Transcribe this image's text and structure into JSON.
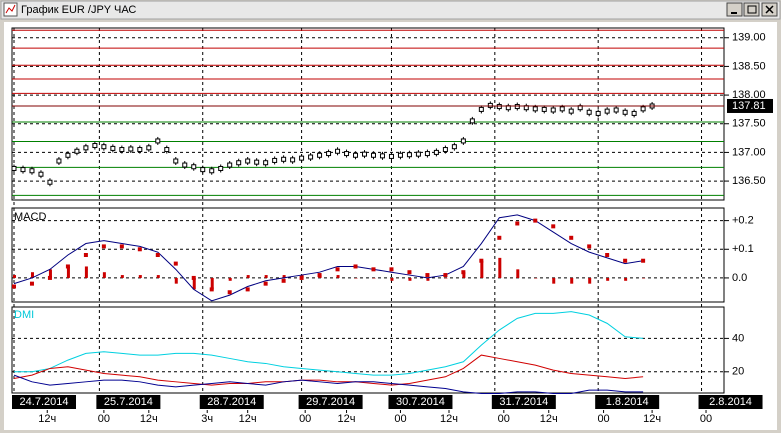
{
  "window": {
    "title": "График EUR /JPY ЧАС"
  },
  "chart_data": [
    {
      "type": "stock",
      "color": "#000000",
      "xlim": [
        0,
        79
      ],
      "ylim": [
        136.17,
        139.17
      ],
      "yticks": [
        {
          "value": 139,
          "label": "139.00"
        },
        {
          "value": 138.5,
          "label": "138.50"
        },
        {
          "value": 138,
          "label": "138.00"
        },
        {
          "value": 137.5,
          "label": "137.50"
        },
        {
          "value": 137,
          "label": "137.00"
        },
        {
          "value": 136.5,
          "label": "136.50"
        }
      ],
      "grid": true,
      "xticks": [
        {
          "value": 0,
          "label": "24.7.2014"
        },
        {
          "value": 9.5,
          "label": "25.7.2014"
        },
        {
          "value": 21,
          "label": "28.7.2014"
        },
        {
          "value": 32,
          "label": "29.7.2014"
        },
        {
          "value": 42,
          "label": "30.7.2014"
        },
        {
          "value": 53.5,
          "label": "31.7.2014"
        },
        {
          "value": 65,
          "label": "1.8.2014"
        },
        {
          "value": 76.5,
          "label": "2.8.2014"
        }
      ],
      "hour_ticks": [
        {
          "value": 3.7,
          "label": "12ч"
        },
        {
          "value": 10,
          "label": "00"
        },
        {
          "value": 15,
          "label": "12ч"
        },
        {
          "value": 21.5,
          "label": "3ч"
        },
        {
          "value": 26,
          "label": "12ч"
        },
        {
          "value": 32.4,
          "label": "00"
        },
        {
          "value": 37,
          "label": "12ч"
        },
        {
          "value": 43,
          "label": "00"
        },
        {
          "value": 48.4,
          "label": "12ч"
        },
        {
          "value": 54.5,
          "label": "00"
        },
        {
          "value": 59.5,
          "label": "12ч"
        },
        {
          "value": 65.6,
          "label": "00"
        },
        {
          "value": 71,
          "label": "12ч"
        },
        {
          "value": 77,
          "label": "00"
        }
      ],
      "values": [
        136.72,
        136.7,
        136.68,
        136.62,
        136.48,
        136.85,
        136.95,
        137.02,
        137.08,
        137.12,
        137.1,
        137.07,
        137.05,
        137.06,
        137.05,
        137.08,
        137.2,
        137.05,
        136.85,
        136.78,
        136.75,
        136.7,
        136.68,
        136.72,
        136.78,
        136.82,
        136.85,
        136.83,
        136.82,
        136.86,
        136.88,
        136.87,
        136.9,
        136.92,
        136.95,
        136.98,
        137.02,
        136.98,
        136.95,
        136.97,
        136.95,
        136.94,
        136.93,
        136.95,
        136.96,
        136.97,
        136.98,
        137.0,
        137.05,
        137.1,
        137.2,
        137.55,
        137.75,
        137.82,
        137.8,
        137.78,
        137.8,
        137.78,
        137.76,
        137.75,
        137.74,
        137.76,
        137.72,
        137.78,
        137.7,
        137.68,
        137.72,
        137.74,
        137.7,
        137.68,
        137.76,
        137.81
      ],
      "last_price": 137.81,
      "resistance_levels": [
        139.13,
        138.82,
        138.52,
        138.28,
        138.03
      ],
      "support_levels": [
        137.53,
        137.19,
        136.74,
        136.25
      ],
      "resistance_color": "#c00000",
      "support_color": "#008000"
    },
    {
      "type": "macd",
      "label": "MACD",
      "ylim": [
        -0.084,
        0.244
      ],
      "yticks": [
        {
          "value": 0.2,
          "label": "+0.2"
        },
        {
          "value": 0.1,
          "label": "+0.1"
        },
        {
          "value": 0,
          "label": "0.0"
        }
      ],
      "x": [
        0,
        2,
        4,
        6,
        8,
        10,
        12,
        14,
        16,
        18,
        20,
        22,
        24,
        26,
        28,
        30,
        32,
        34,
        36,
        38,
        40,
        42,
        44,
        46,
        48,
        50,
        52,
        54,
        56,
        58,
        60,
        62,
        64,
        66,
        68,
        70
      ],
      "series": [
        {
          "color": "#cc0000",
          "kind": "histogram",
          "values": [
            0.01,
            0.02,
            0.03,
            0.04,
            0.04,
            0.02,
            0.01,
            0.01,
            0.01,
            -0.02,
            -0.04,
            -0.04,
            -0.01,
            0.01,
            0.01,
            0.01,
            0.01,
            0.01,
            0.01,
            0,
            0,
            -0.01,
            -0.01,
            -0.01,
            0,
            0.02,
            0.06,
            0.07,
            0.03,
            0,
            -0.02,
            -0.02,
            -0.02,
            -0.01,
            -0.01,
            0
          ]
        },
        {
          "color": "#000080",
          "kind": "line",
          "values": [
            -0.02,
            0,
            0.03,
            0.08,
            0.12,
            0.13,
            0.12,
            0.11,
            0.09,
            0.03,
            -0.04,
            -0.08,
            -0.06,
            -0.03,
            -0.01,
            0,
            0.01,
            0.02,
            0.04,
            0.04,
            0.03,
            0.02,
            0.01,
            0,
            0.01,
            0.04,
            0.12,
            0.21,
            0.22,
            0.2,
            0.16,
            0.12,
            0.09,
            0.07,
            0.05,
            0.06
          ]
        },
        {
          "color": "#cc0000",
          "kind": "dots",
          "values": [
            -0.03,
            -0.02,
            0,
            0.04,
            0.08,
            0.11,
            0.11,
            0.1,
            0.08,
            0.05,
            0,
            -0.04,
            -0.05,
            -0.04,
            -0.02,
            -0.01,
            0,
            0.01,
            0.03,
            0.04,
            0.03,
            0.03,
            0.02,
            0.01,
            0.01,
            0.02,
            0.06,
            0.14,
            0.19,
            0.2,
            0.18,
            0.14,
            0.11,
            0.08,
            0.06,
            0.06
          ]
        }
      ]
    },
    {
      "type": "dmi",
      "label": "DMI",
      "label_color": "#00c8d8",
      "ylim": [
        7.3,
        58.8
      ],
      "yticks": [
        40,
        20
      ],
      "x": [
        0,
        2,
        4,
        6,
        8,
        10,
        12,
        14,
        16,
        18,
        20,
        22,
        24,
        26,
        28,
        30,
        32,
        34,
        36,
        38,
        40,
        42,
        44,
        46,
        48,
        50,
        52,
        54,
        56,
        58,
        60,
        62,
        64,
        66,
        68,
        70
      ],
      "series": [
        {
          "color": "#00d0e0",
          "values": [
            20,
            20,
            22,
            27,
            31,
            32,
            31,
            30,
            30,
            31,
            31,
            30,
            28,
            26,
            25,
            23,
            22,
            21,
            20,
            19,
            18,
            18,
            19,
            21,
            23,
            26,
            36,
            45,
            52,
            55,
            55,
            56,
            54,
            49,
            41,
            40
          ]
        },
        {
          "color": "#d00000",
          "values": [
            16,
            18,
            22,
            23,
            21,
            19,
            18,
            17,
            15,
            14,
            13,
            12,
            13,
            13,
            14,
            14,
            15,
            15,
            14,
            14,
            13,
            12,
            13,
            15,
            17,
            22,
            30,
            28,
            26,
            24,
            21,
            19,
            18,
            17,
            16,
            17
          ]
        },
        {
          "color": "#000090",
          "values": [
            18,
            14,
            12,
            13,
            14,
            15,
            15,
            14,
            12,
            11,
            12,
            13,
            14,
            13,
            12,
            14,
            15,
            14,
            13,
            14,
            14,
            13,
            12,
            11,
            10,
            8,
            7,
            7,
            8,
            8,
            7,
            7,
            9,
            9,
            8,
            8
          ]
        }
      ]
    }
  ]
}
